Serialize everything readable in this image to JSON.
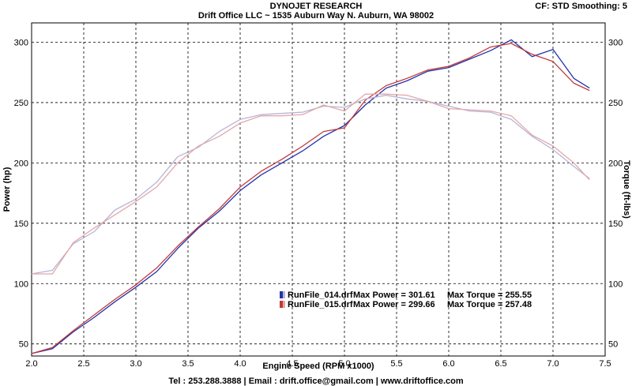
{
  "header": {
    "title": "DYNOJET RESEARCH",
    "subtitle": "Drift Office LLC ~ 1535 Auburn Way N. Auburn, WA 98002",
    "settings": "CF: STD  Smoothing: 5"
  },
  "footer": "Tel : 253.288.3888 | Email : drift.office@gmail.com | www.driftoffice.com",
  "chart_data": {
    "type": "line",
    "xlabel": "Engine Speed (RPM x1000)",
    "ylabel_left": "Power (hp)",
    "ylabel_right": "Torque (ft-lbs)",
    "xlim": [
      2.0,
      7.5
    ],
    "ylim": [
      40,
      316
    ],
    "x_ticks": [
      "2.0",
      "2.5",
      "3.0",
      "3.5",
      "4.0",
      "4.5",
      "5.0",
      "5.5",
      "6.0",
      "6.5",
      "7.0",
      "7.5"
    ],
    "y_ticks": [
      "50",
      "100",
      "150",
      "200",
      "250",
      "300"
    ],
    "grid": true,
    "legend_position": "bottom-center",
    "runs": [
      {
        "file": "RunFile_014.drf",
        "max_power_label": "Max Power = 301.61",
        "max_torque_label": "Max Torque = 255.55",
        "power_color": "#2233aa",
        "torque_color": "#b8b4d8"
      },
      {
        "file": "RunFile_015.drf",
        "max_power_label": "Max Power = 299.66",
        "max_torque_label": "Max Torque = 257.48",
        "power_color": "#c43a3a",
        "torque_color": "#e2a8a8"
      }
    ],
    "series": [
      {
        "kind": "power",
        "color": "#2233aa",
        "x": [
          2.0,
          2.2,
          2.4,
          2.6,
          2.8,
          3.0,
          3.2,
          3.4,
          3.6,
          3.8,
          4.0,
          4.2,
          4.4,
          4.6,
          4.8,
          5.0,
          5.2,
          5.4,
          5.6,
          5.8,
          6.0,
          6.2,
          6.4,
          6.6,
          6.8,
          7.0,
          7.2,
          7.35
        ],
        "y": [
          42,
          46,
          60,
          72,
          85,
          97,
          110,
          129,
          146,
          160,
          177,
          190,
          200,
          210,
          222,
          231,
          248,
          262,
          268,
          276,
          279,
          286,
          293,
          302,
          288,
          294,
          270,
          262
        ]
      },
      {
        "kind": "power",
        "color": "#c43a3a",
        "x": [
          2.0,
          2.2,
          2.4,
          2.6,
          2.8,
          3.0,
          3.2,
          3.4,
          3.6,
          3.8,
          4.0,
          4.2,
          4.4,
          4.6,
          4.8,
          5.0,
          5.2,
          5.4,
          5.6,
          5.8,
          6.0,
          6.2,
          6.4,
          6.6,
          6.8,
          7.0,
          7.2,
          7.35
        ],
        "y": [
          42,
          47,
          61,
          74,
          87,
          99,
          113,
          131,
          147,
          162,
          180,
          193,
          203,
          214,
          226,
          229,
          252,
          264,
          270,
          277,
          280,
          287,
          296,
          299,
          290,
          284,
          266,
          260
        ]
      },
      {
        "kind": "torque",
        "color": "#b8b4d8",
        "x": [
          2.0,
          2.2,
          2.4,
          2.6,
          2.8,
          3.0,
          3.2,
          3.4,
          3.6,
          3.8,
          4.0,
          4.2,
          4.4,
          4.6,
          4.8,
          5.0,
          5.2,
          5.4,
          5.6,
          5.8,
          6.0,
          6.2,
          6.4,
          6.6,
          6.8,
          7.0,
          7.2,
          7.35
        ],
        "y": [
          108,
          111,
          133,
          143,
          161,
          170,
          184,
          205,
          213,
          226,
          236,
          240,
          241,
          242,
          247,
          246,
          253,
          256,
          253,
          251,
          247,
          243,
          242,
          236,
          222,
          211,
          197,
          187
        ]
      },
      {
        "kind": "torque",
        "color": "#e2a8a8",
        "x": [
          2.0,
          2.2,
          2.4,
          2.6,
          2.8,
          3.0,
          3.2,
          3.4,
          3.6,
          3.8,
          4.0,
          4.2,
          4.4,
          4.6,
          4.8,
          5.0,
          5.2,
          5.4,
          5.6,
          5.8,
          6.0,
          6.2,
          6.4,
          6.6,
          6.8,
          7.0,
          7.2,
          7.35
        ],
        "y": [
          108,
          108,
          134,
          146,
          157,
          168,
          180,
          200,
          214,
          222,
          233,
          239,
          239,
          240,
          248,
          243,
          257,
          257,
          256,
          251,
          245,
          244,
          243,
          239,
          223,
          214,
          200,
          186
        ]
      }
    ]
  }
}
